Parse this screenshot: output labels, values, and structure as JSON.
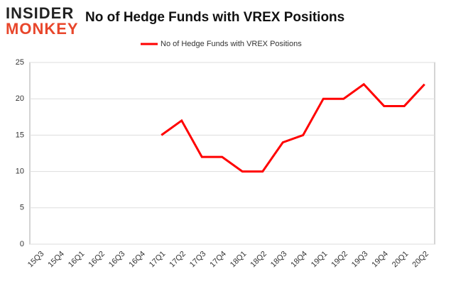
{
  "logo": {
    "top": "INSIDER",
    "bottom": "MONKEY"
  },
  "chart_data": {
    "type": "line",
    "title": "No of Hedge Funds with VREX Positions",
    "categories": [
      "15Q3",
      "15Q4",
      "16Q1",
      "16Q2",
      "16Q3",
      "16Q4",
      "17Q1",
      "17Q2",
      "17Q3",
      "17Q4",
      "18Q1",
      "18Q2",
      "18Q3",
      "18Q4",
      "19Q1",
      "19Q2",
      "19Q3",
      "19Q4",
      "20Q1",
      "20Q2"
    ],
    "series": [
      {
        "name": "No of Hedge Funds with VREX Positions",
        "color": "#ff0000",
        "values": [
          null,
          null,
          null,
          null,
          null,
          null,
          15,
          17,
          12,
          12,
          10,
          10,
          14,
          15,
          20,
          20,
          22,
          19,
          19,
          22
        ]
      }
    ],
    "ylim": [
      0,
      25
    ],
    "yticks": [
      0,
      5,
      10,
      15,
      20,
      25
    ],
    "grid": true,
    "legend": "top"
  }
}
